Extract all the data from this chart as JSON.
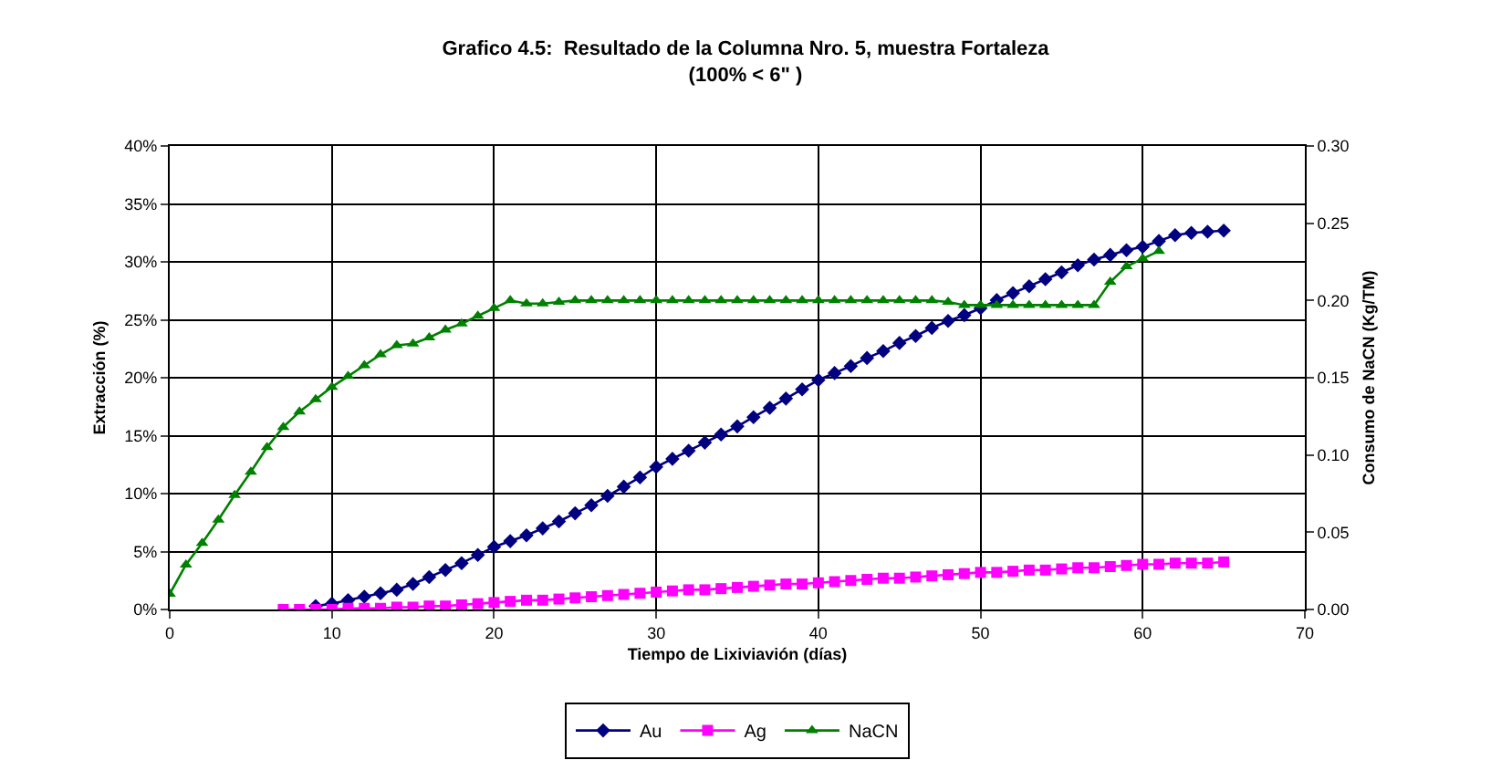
{
  "chart_data": {
    "type": "line",
    "title": "Grafico 4.5:  Resultado de la Columna Nro. 5, muestra Fortaleza\n(100% < 6\" )",
    "xlabel": "Tiempo de Lixiviavión (días)",
    "ylabel": "Extracción (%)",
    "y2label": "Consumo de NaCN (Kg/TM)",
    "xlim": [
      0,
      70
    ],
    "xticks": [
      0,
      10,
      20,
      30,
      40,
      50,
      60,
      70
    ],
    "ylim": [
      0,
      40
    ],
    "yticks": [
      {
        "value": 0,
        "label": "0%"
      },
      {
        "value": 5,
        "label": "5%"
      },
      {
        "value": 10,
        "label": "10%"
      },
      {
        "value": 15,
        "label": "15%"
      },
      {
        "value": 20,
        "label": "20%"
      },
      {
        "value": 25,
        "label": "25%"
      },
      {
        "value": 30,
        "label": "30%"
      },
      {
        "value": 35,
        "label": "35%"
      },
      {
        "value": 40,
        "label": "40%"
      }
    ],
    "y2lim": [
      0,
      0.3
    ],
    "y2ticks": [
      {
        "value": 0,
        "label": "0.00"
      },
      {
        "value": 0.05,
        "label": "0.05"
      },
      {
        "value": 0.1,
        "label": "0.10"
      },
      {
        "value": 0.15,
        "label": "0.15"
      },
      {
        "value": 0.2,
        "label": "0.20"
      },
      {
        "value": 0.25,
        "label": "0.25"
      },
      {
        "value": 0.3,
        "label": "0.30"
      }
    ],
    "grid": true,
    "legend": "bottom",
    "line_style": "solid",
    "series": [
      {
        "name": "Au",
        "color": "#000080",
        "marker": "diamond",
        "x": [
          9,
          10,
          11,
          12,
          13,
          14,
          15,
          16,
          17,
          18,
          19,
          20,
          21,
          22,
          23,
          24,
          25,
          26,
          27,
          28,
          29,
          30,
          31,
          32,
          33,
          34,
          35,
          36,
          37,
          38,
          39,
          40,
          41,
          42,
          43,
          44,
          45,
          46,
          47,
          48,
          49,
          50,
          51,
          52,
          53,
          54,
          55,
          56,
          57,
          58,
          59,
          60,
          61,
          62,
          63,
          64,
          65
        ],
        "values": [
          0.3,
          0.5,
          0.8,
          1.1,
          1.4,
          1.7,
          2.2,
          2.8,
          3.4,
          4.0,
          4.7,
          5.4,
          5.9,
          6.4,
          7.0,
          7.6,
          8.3,
          9.0,
          9.8,
          10.6,
          11.4,
          12.3,
          13.0,
          13.7,
          14.4,
          15.1,
          15.8,
          16.6,
          17.4,
          18.2,
          19.0,
          19.8,
          20.4,
          21.0,
          21.7,
          22.3,
          23.0,
          23.6,
          24.3,
          24.9,
          25.4,
          26.0,
          26.7,
          27.3,
          27.9,
          28.5,
          29.1,
          29.7,
          30.2,
          30.6,
          31.0,
          31.3,
          31.8,
          32.3,
          32.5,
          32.6,
          32.7
        ]
      },
      {
        "name": "Ag",
        "color": "#ff00ff",
        "marker": "square",
        "x": [
          7,
          8,
          9,
          10,
          11,
          12,
          13,
          14,
          15,
          16,
          17,
          18,
          19,
          20,
          21,
          22,
          23,
          24,
          25,
          26,
          27,
          28,
          29,
          30,
          31,
          32,
          33,
          34,
          35,
          36,
          37,
          38,
          39,
          40,
          41,
          42,
          43,
          44,
          45,
          46,
          47,
          48,
          49,
          50,
          51,
          52,
          53,
          54,
          55,
          56,
          57,
          58,
          59,
          60,
          61,
          62,
          63,
          64,
          65
        ],
        "values": [
          0,
          0,
          0,
          0,
          0.1,
          0.1,
          0.1,
          0.2,
          0.2,
          0.3,
          0.3,
          0.4,
          0.5,
          0.6,
          0.7,
          0.8,
          0.8,
          0.9,
          1.0,
          1.1,
          1.2,
          1.3,
          1.4,
          1.5,
          1.6,
          1.7,
          1.7,
          1.8,
          1.9,
          2.0,
          2.1,
          2.2,
          2.2,
          2.3,
          2.4,
          2.5,
          2.6,
          2.7,
          2.7,
          2.8,
          2.9,
          3.0,
          3.1,
          3.2,
          3.2,
          3.3,
          3.4,
          3.4,
          3.5,
          3.6,
          3.6,
          3.7,
          3.8,
          3.9,
          3.9,
          4.0,
          4.0,
          4.0,
          4.1
        ]
      },
      {
        "name": "NaCN",
        "color": "#008000",
        "marker": "triangle",
        "axis": "y2",
        "x": [
          0,
          1,
          2,
          3,
          4,
          5,
          6,
          7,
          8,
          9,
          10,
          11,
          12,
          13,
          14,
          15,
          16,
          17,
          18,
          19,
          20,
          21,
          22,
          23,
          24,
          25,
          26,
          27,
          28,
          29,
          30,
          31,
          32,
          33,
          34,
          35,
          36,
          37,
          38,
          39,
          40,
          41,
          42,
          43,
          44,
          45,
          46,
          47,
          48,
          49,
          50,
          51,
          52,
          53,
          54,
          55,
          56,
          57,
          58,
          59,
          60,
          61
        ],
        "values": [
          0.01,
          0.029,
          0.043,
          0.058,
          0.074,
          0.089,
          0.105,
          0.118,
          0.128,
          0.136,
          0.144,
          0.151,
          0.158,
          0.165,
          0.171,
          0.172,
          0.176,
          0.181,
          0.185,
          0.19,
          0.195,
          0.2,
          0.198,
          0.198,
          0.199,
          0.2,
          0.2,
          0.2,
          0.2,
          0.2,
          0.2,
          0.2,
          0.2,
          0.2,
          0.2,
          0.2,
          0.2,
          0.2,
          0.2,
          0.2,
          0.2,
          0.2,
          0.2,
          0.2,
          0.2,
          0.2,
          0.2,
          0.2,
          0.199,
          0.197,
          0.197,
          0.197,
          0.197,
          0.197,
          0.197,
          0.197,
          0.197,
          0.197,
          0.212,
          0.222,
          0.227,
          0.232
        ]
      }
    ]
  }
}
